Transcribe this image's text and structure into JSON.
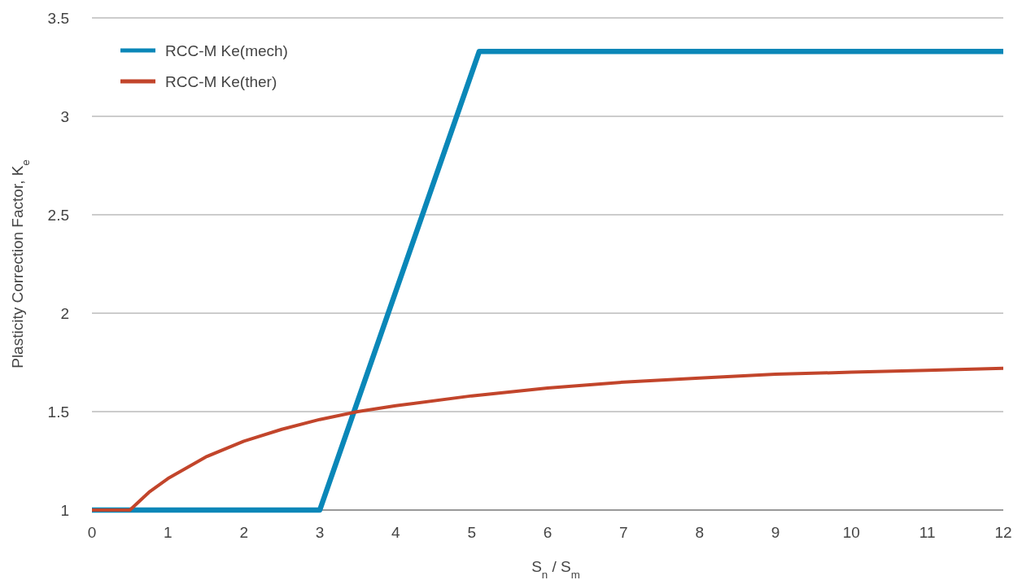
{
  "chart_data": {
    "type": "line",
    "xlabel": "S$_{n}$ / S$_{m}$",
    "ylabel": "Plasticity Correction Factor, K$_{e}$",
    "xlim": [
      0,
      12
    ],
    "xticks": [
      0,
      1,
      2,
      3,
      4,
      5,
      6,
      7,
      8,
      9,
      10,
      11,
      12
    ],
    "ylim": [
      1,
      3.5
    ],
    "yticks": [
      1,
      1.5,
      2,
      2.5,
      3,
      3.5
    ],
    "grid": "y",
    "legend": "top left",
    "marker": "none",
    "line_style": "solid",
    "series": [
      {
        "name": "RCC-M Ke(mech)",
        "color": "#0a87b8",
        "x": [
          0,
          3,
          5.1,
          12
        ],
        "values": [
          1,
          1,
          3.33,
          3.33
        ]
      },
      {
        "name": "RCC-M Ke(ther)",
        "color": "#c2452b",
        "x": [
          0,
          0.5,
          0.75,
          1,
          1.5,
          2,
          2.5,
          3,
          3.5,
          4,
          5,
          6,
          7,
          8,
          9,
          10,
          11,
          12
        ],
        "values": [
          1,
          1,
          1.09,
          1.16,
          1.27,
          1.35,
          1.41,
          1.46,
          1.5,
          1.53,
          1.58,
          1.62,
          1.65,
          1.67,
          1.69,
          1.7,
          1.71,
          1.72
        ]
      }
    ]
  }
}
